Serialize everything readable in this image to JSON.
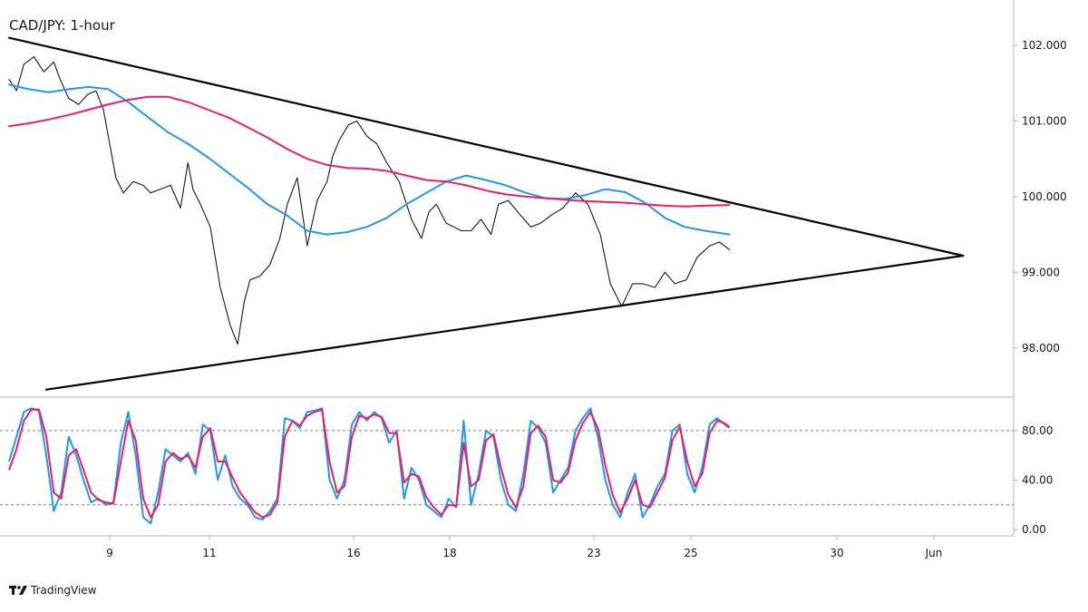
{
  "chart_data": {
    "type": "line",
    "title": "CAD/JPY: 1-hour",
    "price_panel": {
      "ylim": [
        97.35,
        102.6
      ],
      "y_ticks": [
        "102.000",
        "101.000",
        "100.000",
        "99.000",
        "98.000"
      ],
      "x_ticks": [
        "9",
        "11",
        "16",
        "18",
        "23",
        "25",
        "30",
        "Jun"
      ],
      "grid": false,
      "series": [
        {
          "color": "#131722",
          "x": [
            0,
            1.5,
            3,
            5,
            7,
            9,
            10.3,
            12,
            14,
            15.8,
            17.5,
            19,
            21.5,
            23,
            25,
            27,
            28.5,
            30.5,
            32.5,
            34.5,
            36,
            37,
            38.5,
            40.5,
            42.5,
            44.5,
            46,
            47.3,
            48.5,
            50.5,
            52.5,
            54.5,
            56,
            58,
            60,
            62,
            64,
            65.2,
            66.5,
            68.3,
            70,
            72,
            74,
            76,
            78.5,
            81,
            83,
            84.5,
            86,
            88,
            91,
            93,
            95,
            97,
            98.5,
            100.5,
            103,
            105,
            107,
            109,
            111.5,
            114,
            116.5,
            119,
            121,
            123.3,
            125.5,
            127.5,
            130,
            132,
            134,
            136.3,
            138.5,
            141,
            143,
            145
          ],
          "values": [
            101.55,
            101.4,
            101.75,
            101.85,
            101.65,
            101.78,
            101.55,
            101.3,
            101.22,
            101.35,
            101.4,
            101.15,
            100.25,
            100.05,
            100.2,
            100.15,
            100.05,
            100.1,
            100.15,
            99.85,
            100.45,
            100.1,
            99.9,
            99.6,
            98.8,
            98.3,
            98.05,
            98.6,
            98.9,
            98.95,
            99.1,
            99.45,
            99.9,
            100.25,
            99.35,
            99.95,
            100.2,
            100.55,
            100.75,
            100.95,
            101.0,
            100.8,
            100.7,
            100.45,
            100.2,
            99.7,
            99.45,
            99.8,
            99.9,
            99.65,
            99.55,
            99.55,
            99.7,
            99.5,
            99.9,
            99.95,
            99.75,
            99.6,
            99.65,
            99.75,
            99.85,
            100.05,
            99.9,
            99.5,
            98.85,
            98.55,
            98.85,
            98.85,
            98.8,
            99.0,
            98.85,
            98.9,
            99.2,
            99.35,
            99.4,
            99.3
          ]
        },
        {
          "color": "#2196f3",
          "x": [
            0,
            4,
            8,
            12,
            16,
            20,
            24,
            28,
            32,
            36,
            40,
            44,
            48,
            52,
            56,
            60,
            64,
            68,
            72,
            76,
            80,
            84,
            88,
            92,
            96,
            100,
            104,
            108,
            112,
            116,
            120,
            124,
            128,
            132,
            136,
            140,
            145
          ],
          "values": [
            101.48,
            101.42,
            101.38,
            101.42,
            101.45,
            101.42,
            101.25,
            101.05,
            100.85,
            100.7,
            100.52,
            100.32,
            100.12,
            99.9,
            99.75,
            99.55,
            99.5,
            99.53,
            99.6,
            99.72,
            99.9,
            100.05,
            100.2,
            100.28,
            100.22,
            100.15,
            100.05,
            99.98,
            99.97,
            100.02,
            100.1,
            100.06,
            99.92,
            99.72,
            99.6,
            99.55,
            99.5
          ]
        },
        {
          "color": "#e91e63",
          "x": [
            0,
            4,
            8,
            12,
            16,
            20,
            24,
            28,
            32,
            36,
            40,
            44,
            48,
            52,
            56,
            60,
            64,
            68,
            72,
            76,
            80,
            84,
            88,
            92,
            96,
            100,
            104,
            108,
            112,
            116,
            120,
            124,
            128,
            132,
            136,
            140,
            145
          ],
          "values": [
            100.93,
            100.97,
            101.02,
            101.08,
            101.15,
            101.22,
            101.28,
            101.32,
            101.32,
            101.25,
            101.15,
            101.05,
            100.92,
            100.78,
            100.63,
            100.5,
            100.42,
            100.38,
            100.37,
            100.34,
            100.28,
            100.22,
            100.2,
            100.15,
            100.08,
            100.03,
            100.0,
            99.98,
            99.96,
            99.94,
            99.93,
            99.92,
            99.9,
            99.88,
            99.87,
            99.88,
            99.89
          ]
        },
        {
          "color": "#000000",
          "x": [
            0,
            192
          ],
          "values": [
            102.1,
            99.22
          ]
        },
        {
          "color": "#000000",
          "x": [
            7.5,
            192
          ],
          "values": [
            97.45,
            99.22
          ]
        }
      ]
    },
    "oscillator_panel": {
      "ylim": [
        -5,
        107
      ],
      "y_ticks": [
        "80.00",
        "40.00",
        "0.00"
      ],
      "levels": [
        80,
        20
      ],
      "series": [
        {
          "color": "#2196f3",
          "x": [
            0,
            1.5,
            3,
            4.5,
            6,
            7.5,
            9,
            10.5,
            12,
            13.5,
            15,
            16.5,
            18,
            19.5,
            21,
            22.5,
            24,
            25.5,
            27,
            28.5,
            30,
            31.5,
            33,
            34.5,
            36,
            37.5,
            39,
            40.5,
            42,
            43.5,
            45,
            46.5,
            48,
            49.5,
            51,
            52.5,
            54,
            55.5,
            57,
            58.5,
            60,
            61.5,
            63,
            64.5,
            66,
            67.5,
            69,
            70.5,
            72,
            73.5,
            75,
            76.5,
            78,
            79.5,
            81,
            82.5,
            84,
            85.5,
            87,
            88.5,
            90,
            91.5,
            93,
            94.5,
            96,
            97.5,
            99,
            100.5,
            102,
            103.5,
            105,
            106.5,
            108,
            109.5,
            111,
            112.5,
            114,
            115.5,
            117,
            118.5,
            120,
            121.5,
            123,
            124.5,
            126,
            127.5,
            129,
            130.5,
            132,
            133.5,
            135,
            136.5,
            138,
            139.5,
            141,
            142.5,
            144,
            145
          ],
          "values": [
            55,
            75,
            95,
            98,
            96,
            60,
            15,
            30,
            75,
            60,
            40,
            22,
            25,
            20,
            22,
            70,
            95,
            60,
            10,
            5,
            30,
            65,
            60,
            55,
            62,
            45,
            85,
            80,
            40,
            60,
            35,
            25,
            20,
            10,
            8,
            15,
            25,
            90,
            88,
            82,
            95,
            96,
            98,
            40,
            25,
            40,
            85,
            95,
            88,
            95,
            90,
            70,
            80,
            25,
            50,
            40,
            20,
            15,
            10,
            25,
            18,
            88,
            20,
            45,
            80,
            75,
            40,
            20,
            15,
            45,
            88,
            82,
            70,
            30,
            40,
            50,
            80,
            90,
            98,
            75,
            40,
            20,
            10,
            30,
            45,
            10,
            20,
            35,
            45,
            80,
            85,
            45,
            30,
            50,
            85,
            90,
            85,
            82
          ]
        },
        {
          "color": "#e91e63",
          "x": [
            0,
            1.5,
            3,
            4.5,
            6,
            7.5,
            9,
            10.5,
            12,
            13.5,
            15,
            16.5,
            18,
            19.5,
            21,
            22.5,
            24,
            25.5,
            27,
            28.5,
            30,
            31.5,
            33,
            34.5,
            36,
            37.5,
            39,
            40.5,
            42,
            43.5,
            45,
            46.5,
            48,
            49.5,
            51,
            52.5,
            54,
            55.5,
            57,
            58.5,
            60,
            61.5,
            63,
            64.5,
            66,
            67.5,
            69,
            70.5,
            72,
            73.5,
            75,
            76.5,
            78,
            79.5,
            81,
            82.5,
            84,
            85.5,
            87,
            88.5,
            90,
            91.5,
            93,
            94.5,
            96,
            97.5,
            99,
            100.5,
            102,
            103.5,
            105,
            106.5,
            108,
            109.5,
            111,
            112.5,
            114,
            115.5,
            117,
            118.5,
            120,
            121.5,
            123,
            124.5,
            126,
            127.5,
            129,
            130.5,
            132,
            133.5,
            135,
            136.5,
            138,
            139.5,
            141,
            142.5,
            144,
            145
          ],
          "values": [
            48,
            65,
            88,
            97,
            97,
            75,
            30,
            25,
            60,
            65,
            48,
            30,
            24,
            22,
            21,
            55,
            88,
            72,
            25,
            10,
            20,
            55,
            62,
            57,
            60,
            50,
            75,
            82,
            55,
            55,
            42,
            30,
            22,
            14,
            10,
            12,
            22,
            75,
            88,
            84,
            92,
            95,
            97,
            55,
            30,
            35,
            75,
            92,
            90,
            93,
            91,
            78,
            78,
            38,
            45,
            43,
            26,
            18,
            12,
            20,
            19,
            70,
            35,
            40,
            72,
            77,
            50,
            28,
            18,
            35,
            78,
            84,
            75,
            40,
            38,
            46,
            72,
            86,
            95,
            82,
            52,
            28,
            14,
            25,
            40,
            20,
            18,
            30,
            42,
            72,
            83,
            55,
            35,
            45,
            78,
            88,
            86,
            83
          ]
        }
      ]
    }
  },
  "branding": {
    "logo_text": "TradingView",
    "logo_mark": "TV"
  }
}
